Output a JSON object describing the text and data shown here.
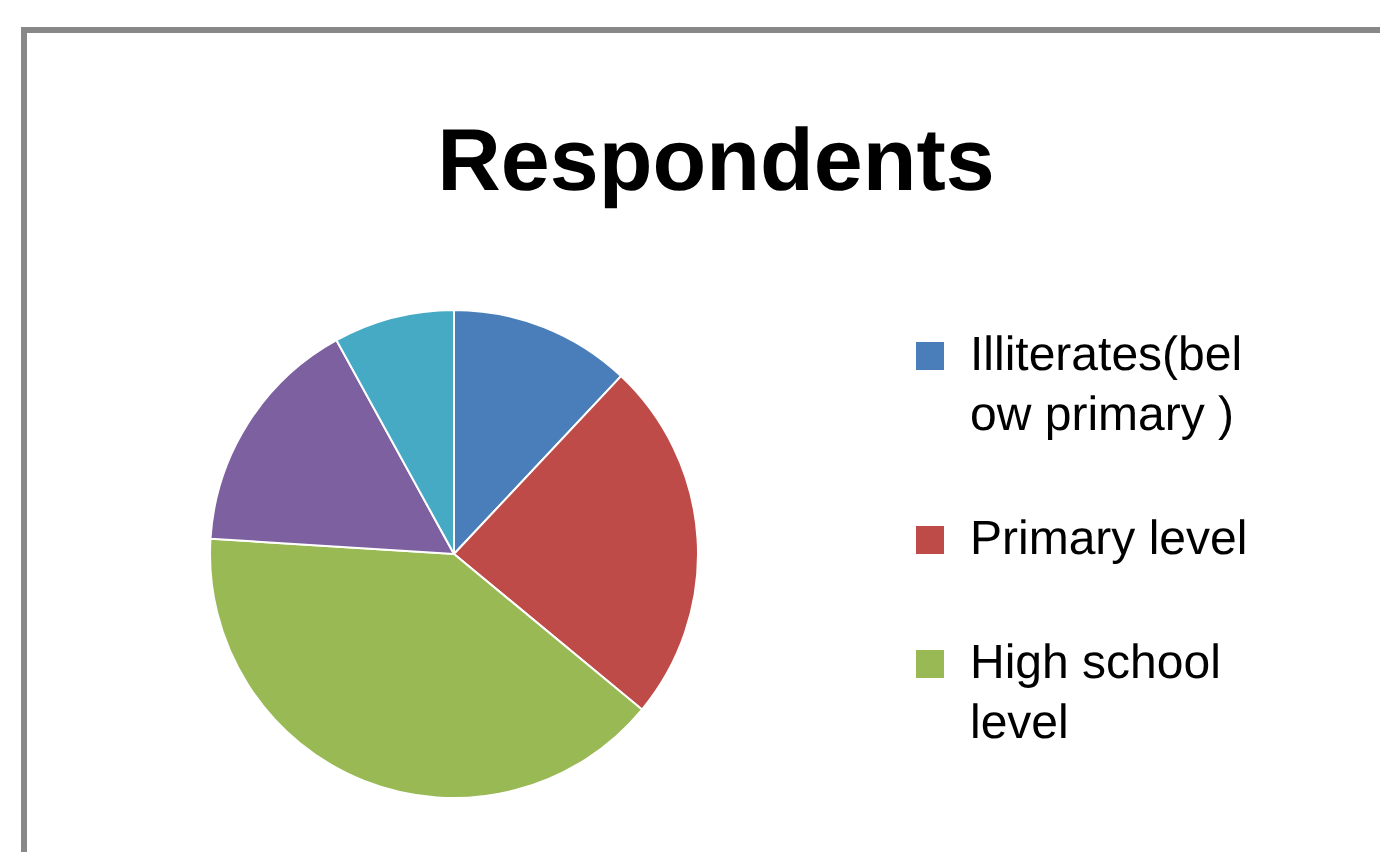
{
  "chart_data": {
    "type": "pie",
    "title": "Respondents",
    "categories": [
      "Illiterates(below primary )",
      "Primary level",
      "High school level",
      null,
      null
    ],
    "values": [
      12,
      24,
      40,
      16,
      8
    ],
    "colors": [
      "#4a7ebb",
      "#be4b48",
      "#98b954",
      "#7d60a0",
      "#46aac5"
    ],
    "legend": "right"
  }
}
